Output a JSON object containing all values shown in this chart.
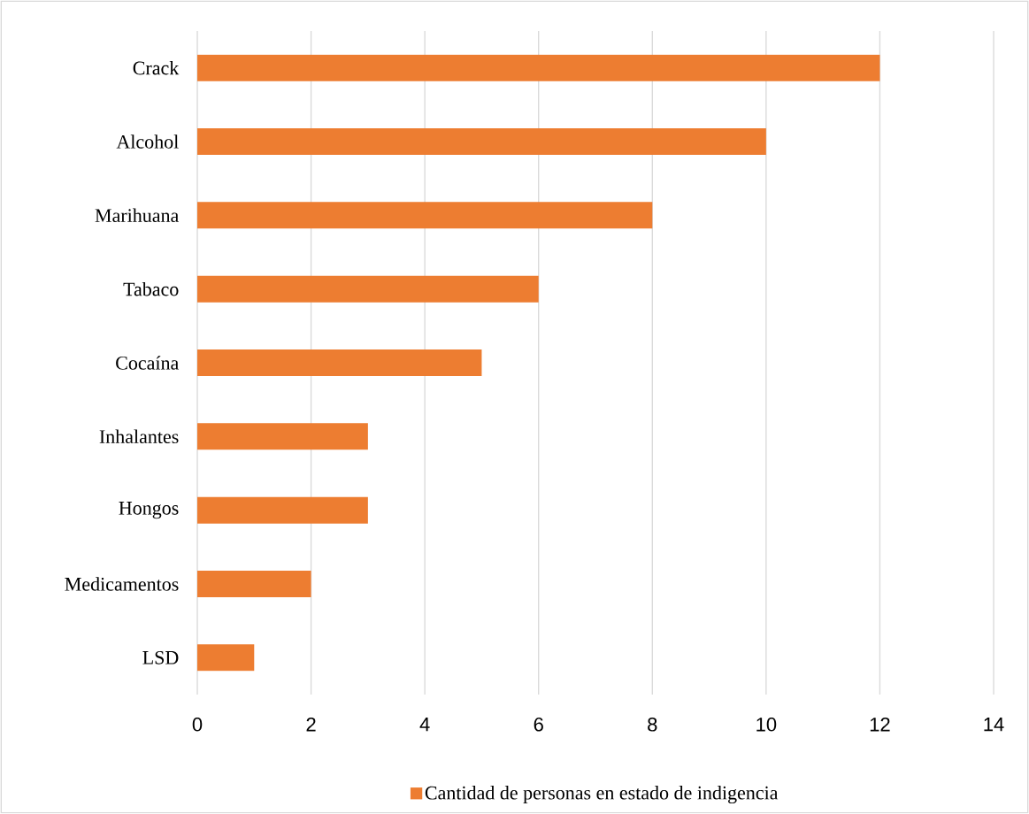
{
  "chart_data": {
    "type": "bar",
    "orientation": "horizontal",
    "categories": [
      "Crack",
      "Alcohol",
      "Marihuana",
      "Tabaco",
      "Cocaína",
      "Inhalantes",
      "Hongos",
      "Medicamentos",
      "LSD"
    ],
    "series": [
      {
        "name": "Cantidad de personas en estado de indigencia",
        "color": "#ed7d31",
        "values": [
          12,
          10,
          8,
          6,
          5,
          3,
          3,
          2,
          1
        ]
      }
    ],
    "xlim": [
      0,
      14
    ],
    "xticks": [
      0,
      2,
      4,
      6,
      8,
      10,
      12,
      14
    ],
    "grid": "x",
    "legend": "bottom"
  }
}
